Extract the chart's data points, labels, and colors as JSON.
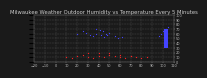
{
  "title": "Milwaukee Weather Outdoor Humidity vs Temperature Every 5 Minutes",
  "xlim": [
    -20,
    110
  ],
  "ylim": [
    0,
    100
  ],
  "xticks": [
    -20,
    -10,
    0,
    10,
    20,
    30,
    40,
    50,
    60,
    70,
    80,
    90,
    100,
    110
  ],
  "yticks": [
    0,
    10,
    20,
    30,
    40,
    50,
    60,
    70,
    80,
    90,
    100
  ],
  "background_color": "#1a1a1a",
  "plot_bg_color": "#1a1a1a",
  "grid_color": "#555555",
  "blue_color": "#4444ff",
  "red_color": "#ff2222",
  "title_color": "#cccccc",
  "tick_color": "#bbbbbb",
  "title_fontsize": 3.8,
  "tick_fontsize": 2.5,
  "blue_points_x": [
    20,
    25,
    28,
    32,
    35,
    38,
    42,
    45,
    48,
    50,
    55,
    58,
    62,
    38,
    41,
    44,
    47,
    96,
    98,
    100,
    103,
    105
  ],
  "blue_points_y": [
    60,
    65,
    62,
    58,
    55,
    60,
    57,
    53,
    58,
    62,
    55,
    50,
    52,
    70,
    68,
    65,
    60,
    55,
    60,
    65,
    70,
    75
  ],
  "red_points_x": [
    10,
    15,
    20,
    25,
    30,
    35,
    40,
    45,
    50,
    55,
    60,
    65,
    70,
    75,
    80,
    85,
    30,
    40,
    50,
    60,
    70
  ],
  "red_points_y": [
    10,
    8,
    12,
    15,
    10,
    8,
    12,
    10,
    15,
    12,
    10,
    8,
    12,
    10,
    8,
    10,
    18,
    20,
    18,
    15,
    12
  ]
}
